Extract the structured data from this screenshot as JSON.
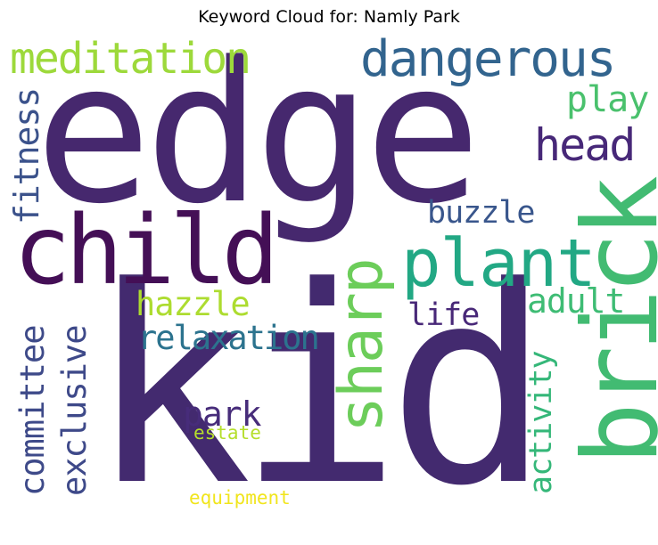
{
  "title": "Keyword Cloud for: Namly Park",
  "words": [
    {
      "text": "edge",
      "color": "#46286e",
      "rotated": false
    },
    {
      "text": "kid",
      "color": "#432a6f",
      "rotated": false
    },
    {
      "text": "child",
      "color": "#440f56",
      "rotated": false
    },
    {
      "text": "brick",
      "color": "#42bb72",
      "rotated": true
    },
    {
      "text": "plant",
      "color": "#22a884",
      "rotated": false
    },
    {
      "text": "dangerous",
      "color": "#32648e",
      "rotated": false
    },
    {
      "text": "meditation",
      "color": "#9dd93b",
      "rotated": false
    },
    {
      "text": "sharp",
      "color": "#6ccd5a",
      "rotated": true
    },
    {
      "text": "head",
      "color": "#472878",
      "rotated": false
    },
    {
      "text": "fitness",
      "color": "#3b528b",
      "rotated": true
    },
    {
      "text": "play",
      "color": "#4ac16d",
      "rotated": false
    },
    {
      "text": "buzzle",
      "color": "#39568c",
      "rotated": false
    },
    {
      "text": "hazzle",
      "color": "#addc30",
      "rotated": false
    },
    {
      "text": "adult",
      "color": "#3ebc74",
      "rotated": false
    },
    {
      "text": "life",
      "color": "#482878",
      "rotated": false
    },
    {
      "text": "relaxation",
      "color": "#2c738e",
      "rotated": false
    },
    {
      "text": "committee",
      "color": "#3e4a89",
      "rotated": true
    },
    {
      "text": "exclusive",
      "color": "#3e4989",
      "rotated": true
    },
    {
      "text": "activity",
      "color": "#35b779",
      "rotated": true
    },
    {
      "text": "park",
      "color": "#472c7a",
      "rotated": false
    },
    {
      "text": "estate",
      "color": "#b5de2b",
      "rotated": false
    },
    {
      "text": "equipment",
      "color": "#f1e51d",
      "rotated": false
    }
  ]
}
